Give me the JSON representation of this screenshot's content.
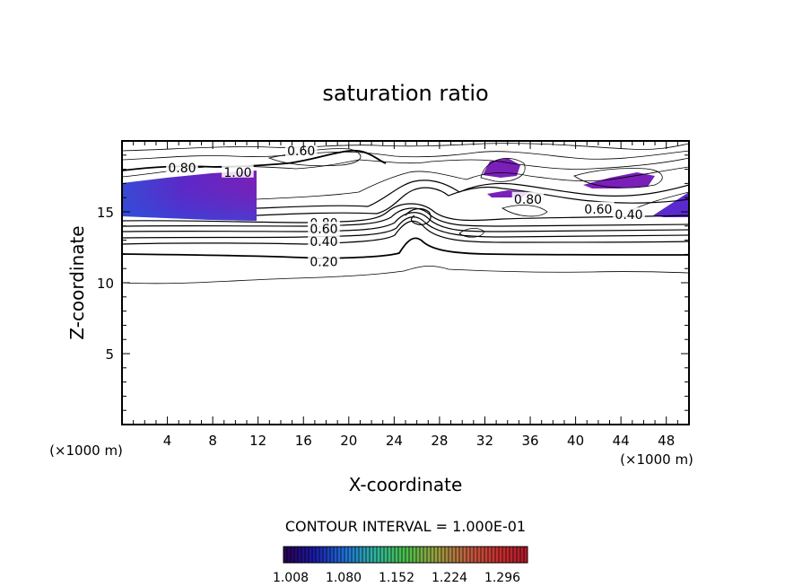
{
  "chart_data": {
    "type": "contour",
    "title": "saturation ratio",
    "xlabel": "X-coordinate",
    "ylabel": "Z-coordinate",
    "x_unit_left": "(×1000 m)",
    "x_unit_right": "(×1000 m)",
    "xlim": [
      0,
      50
    ],
    "ylim": [
      0,
      20
    ],
    "x_ticks": [
      4,
      8,
      12,
      16,
      20,
      24,
      28,
      32,
      36,
      40,
      44,
      48
    ],
    "x_tick_labels": [
      "4",
      "8",
      "12",
      "16",
      "20",
      "24",
      "28",
      "32",
      "36",
      "40",
      "44",
      "48"
    ],
    "y_ticks": [
      5,
      10,
      15
    ],
    "y_tick_labels": [
      "5",
      "10",
      "15"
    ],
    "contour_interval_text": "CONTOUR INTERVAL = 1.000E-01",
    "contour_labels": [
      {
        "text": "0.60",
        "x": 15.8,
        "y": 19.3
      },
      {
        "text": "0.80",
        "x": 5.3,
        "y": 18.1
      },
      {
        "text": "1.00",
        "x": 10.2,
        "y": 17.8
      },
      {
        "text": "0.80",
        "x": 17.8,
        "y": 14.2
      },
      {
        "text": "0.60",
        "x": 17.8,
        "y": 13.8
      },
      {
        "text": "0.40",
        "x": 17.8,
        "y": 12.9
      },
      {
        "text": "0.20",
        "x": 17.8,
        "y": 11.5
      },
      {
        "text": "0.80",
        "x": 35.8,
        "y": 15.9
      },
      {
        "text": "0.60",
        "x": 42.0,
        "y": 15.2
      },
      {
        "text": "0.40",
        "x": 44.7,
        "y": 14.8
      }
    ],
    "colorbar": {
      "tick_labels": [
        "1.008",
        "1.080",
        "1.152",
        "1.224",
        "1.296"
      ],
      "colors": [
        "#2a0050",
        "#1a1aa8",
        "#1f6fd8",
        "#2fb4a0",
        "#4ac04a",
        "#9aa040",
        "#c06040",
        "#c83030",
        "#b01828"
      ]
    },
    "fill_color": "#7a1fb8"
  }
}
